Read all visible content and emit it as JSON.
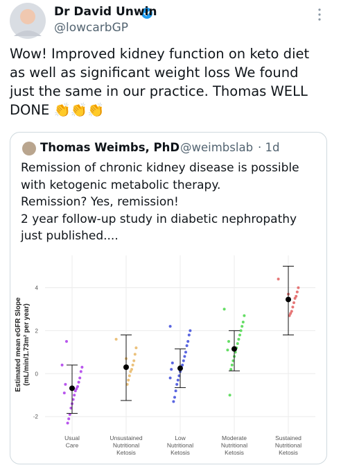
{
  "tweet": {
    "author": "Dr David Unwin",
    "handle": "@lowcarbGP",
    "text_lines": [
      "Wow! Improved kidney function on keto diet",
      "as well as significant weight loss We found",
      "just the same in our practice. Thomas WELL",
      "DONE 👏👏👏"
    ]
  },
  "quote": {
    "author": "Thomas Weimbs, PhD",
    "handle": "@weimbslab",
    "time": "· 1d",
    "text_lines": [
      "Remission of chronic kidney disease is possible",
      "with ketogenic metabolic therapy.",
      "Remission? Yes, remission!",
      "2 year follow-up study in diabetic nephropathy",
      "just published...."
    ]
  },
  "chart_data": {
    "type": "scatter",
    "y_label_lines": [
      "Estimated mean eGFR Slope",
      "(mL/min/1.73m² per year)"
    ],
    "categories": [
      [
        "Usual",
        "Care"
      ],
      [
        "Unsustained",
        "Nutritional",
        "Ketosis"
      ],
      [
        "Low",
        "Nutritional",
        "Ketosis"
      ],
      [
        "Moderate",
        "Nutritional",
        "Ketosis"
      ],
      [
        "Sustained",
        "Nutritional",
        "Ketosis"
      ]
    ],
    "ylim": [
      -2.8,
      5.5
    ],
    "yticks": [
      -2,
      0,
      2,
      4
    ],
    "grid": true,
    "series": [
      {
        "color": "#a62ce8",
        "values": [
          0.4,
          0.3,
          0.1,
          -0.2,
          -0.4,
          -0.6,
          -0.7,
          -0.8,
          -1.0,
          -1.2,
          -1.4,
          -1.6,
          -1.9,
          -2.1,
          -2.3,
          1.5,
          -0.5,
          -0.9
        ],
        "mean": -0.68,
        "err_low": -1.85,
        "err_high": 0.4
      },
      {
        "color": "#e6b25a",
        "values": [
          1.6,
          1.2,
          0.9,
          0.6,
          0.4,
          0.2,
          0.1,
          -0.1,
          -0.3,
          -0.5,
          0.7,
          0.3
        ],
        "mean": 0.3,
        "err_low": -1.25,
        "err_high": 1.8
      },
      {
        "color": "#2f3fd8",
        "values": [
          2.2,
          2.0,
          1.8,
          1.5,
          1.3,
          1.0,
          0.8,
          0.6,
          0.4,
          0.3,
          0.1,
          -0.1,
          -0.3,
          -0.5,
          -0.8,
          -1.1,
          -1.3,
          0.5,
          0.2,
          -0.2
        ],
        "mean": 0.25,
        "err_low": -0.65,
        "err_high": 1.15
      },
      {
        "color": "#3ed43e",
        "values": [
          3.0,
          2.7,
          2.4,
          2.2,
          2.0,
          1.8,
          1.6,
          1.4,
          1.2,
          1.0,
          0.8,
          0.6,
          0.4,
          0.2,
          -1.0,
          1.5,
          1.1
        ],
        "mean": 1.15,
        "err_low": 0.13,
        "err_high": 2.0
      },
      {
        "color": "#e05555",
        "values": [
          4.4,
          4.0,
          3.8,
          3.6,
          3.5,
          3.3,
          3.1,
          2.9,
          2.8,
          2.7,
          3.7
        ],
        "mean": 3.45,
        "err_low": 1.8,
        "err_high": 5.0
      }
    ]
  }
}
